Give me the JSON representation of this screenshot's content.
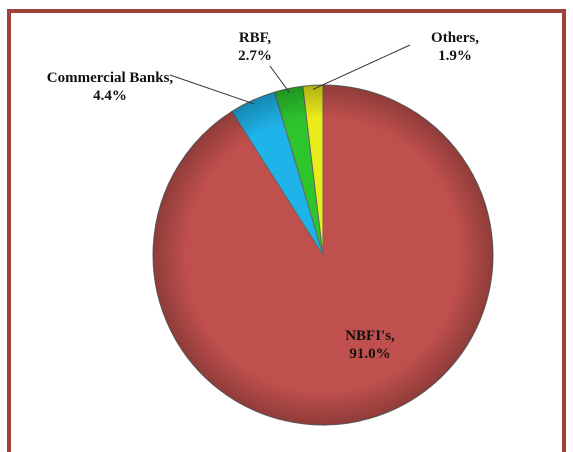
{
  "chart_data": {
    "type": "pie",
    "categories": [
      "NBFI's,",
      "Commercial Banks,",
      "RBF,",
      "Others,"
    ],
    "values": [
      91.0,
      4.4,
      2.7,
      1.9
    ],
    "value_labels": [
      "91.0%",
      "4.4%",
      "2.7%",
      "1.9%"
    ],
    "series": [
      {
        "colors": [
          "#c0504d",
          "#1eb4ea",
          "#2cc52c",
          "#ecec1c"
        ]
      }
    ]
  }
}
